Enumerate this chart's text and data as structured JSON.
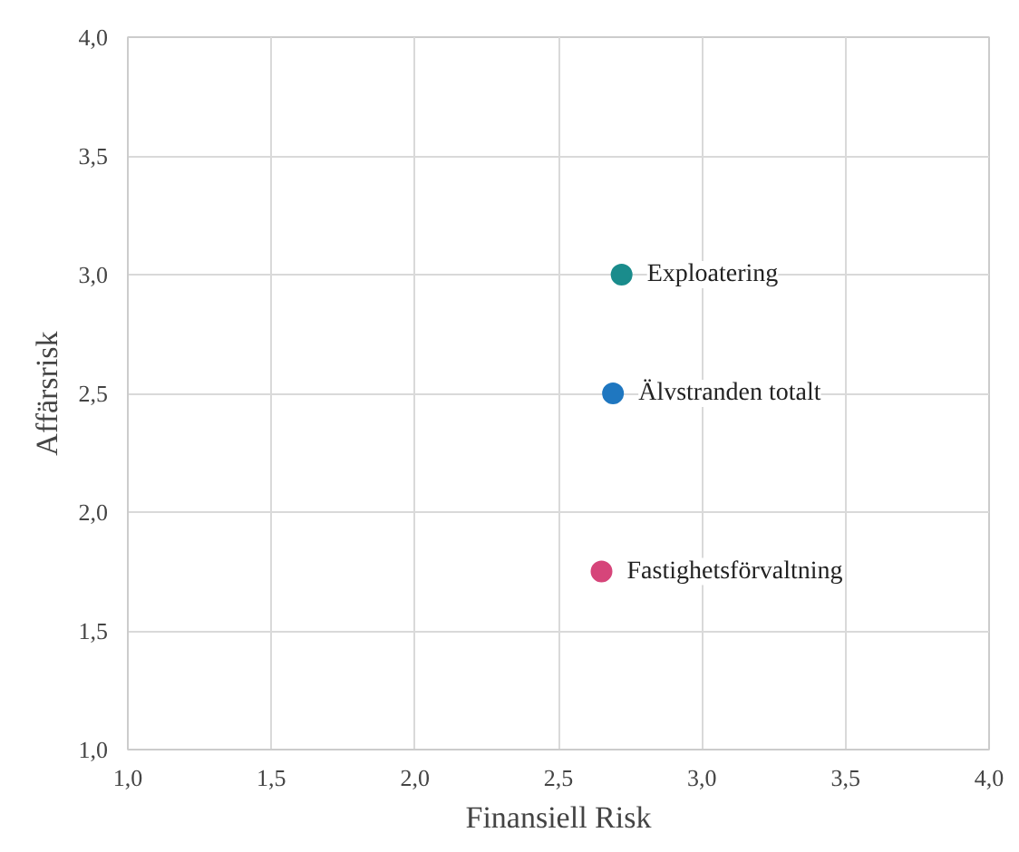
{
  "chart_data": {
    "type": "scatter",
    "xlabel": "Finansiell Risk",
    "ylabel": "Affärsrisk",
    "marker": "circle",
    "grid": true,
    "legend": false,
    "xlim": [
      1.0,
      4.0
    ],
    "ylim": [
      1.0,
      4.0
    ],
    "xticks": [
      {
        "value": 1.0,
        "label": "1,0"
      },
      {
        "value": 1.5,
        "label": "1,5"
      },
      {
        "value": 2.0,
        "label": "2,0"
      },
      {
        "value": 2.5,
        "label": "2,5"
      },
      {
        "value": 3.0,
        "label": "3,0"
      },
      {
        "value": 3.5,
        "label": "3,5"
      },
      {
        "value": 4.0,
        "label": "4,0"
      }
    ],
    "yticks": [
      {
        "value": 1.0,
        "label": "1,0"
      },
      {
        "value": 1.5,
        "label": "1,5"
      },
      {
        "value": 2.0,
        "label": "2,0"
      },
      {
        "value": 2.5,
        "label": "2,5"
      },
      {
        "value": 3.0,
        "label": "3,0"
      },
      {
        "value": 3.5,
        "label": "3,5"
      },
      {
        "value": 4.0,
        "label": "4,0"
      }
    ],
    "series": [
      {
        "name": "Exploatering",
        "color": "#1a8c8c",
        "x": [
          2.72
        ],
        "values": [
          3.0
        ]
      },
      {
        "name": "Älvstranden totalt",
        "color": "#1f77c0",
        "x": [
          2.69
        ],
        "values": [
          2.5
        ]
      },
      {
        "name": "Fastighetsförvaltning",
        "color": "#d6457a",
        "x": [
          2.65
        ],
        "values": [
          1.75
        ]
      }
    ]
  }
}
